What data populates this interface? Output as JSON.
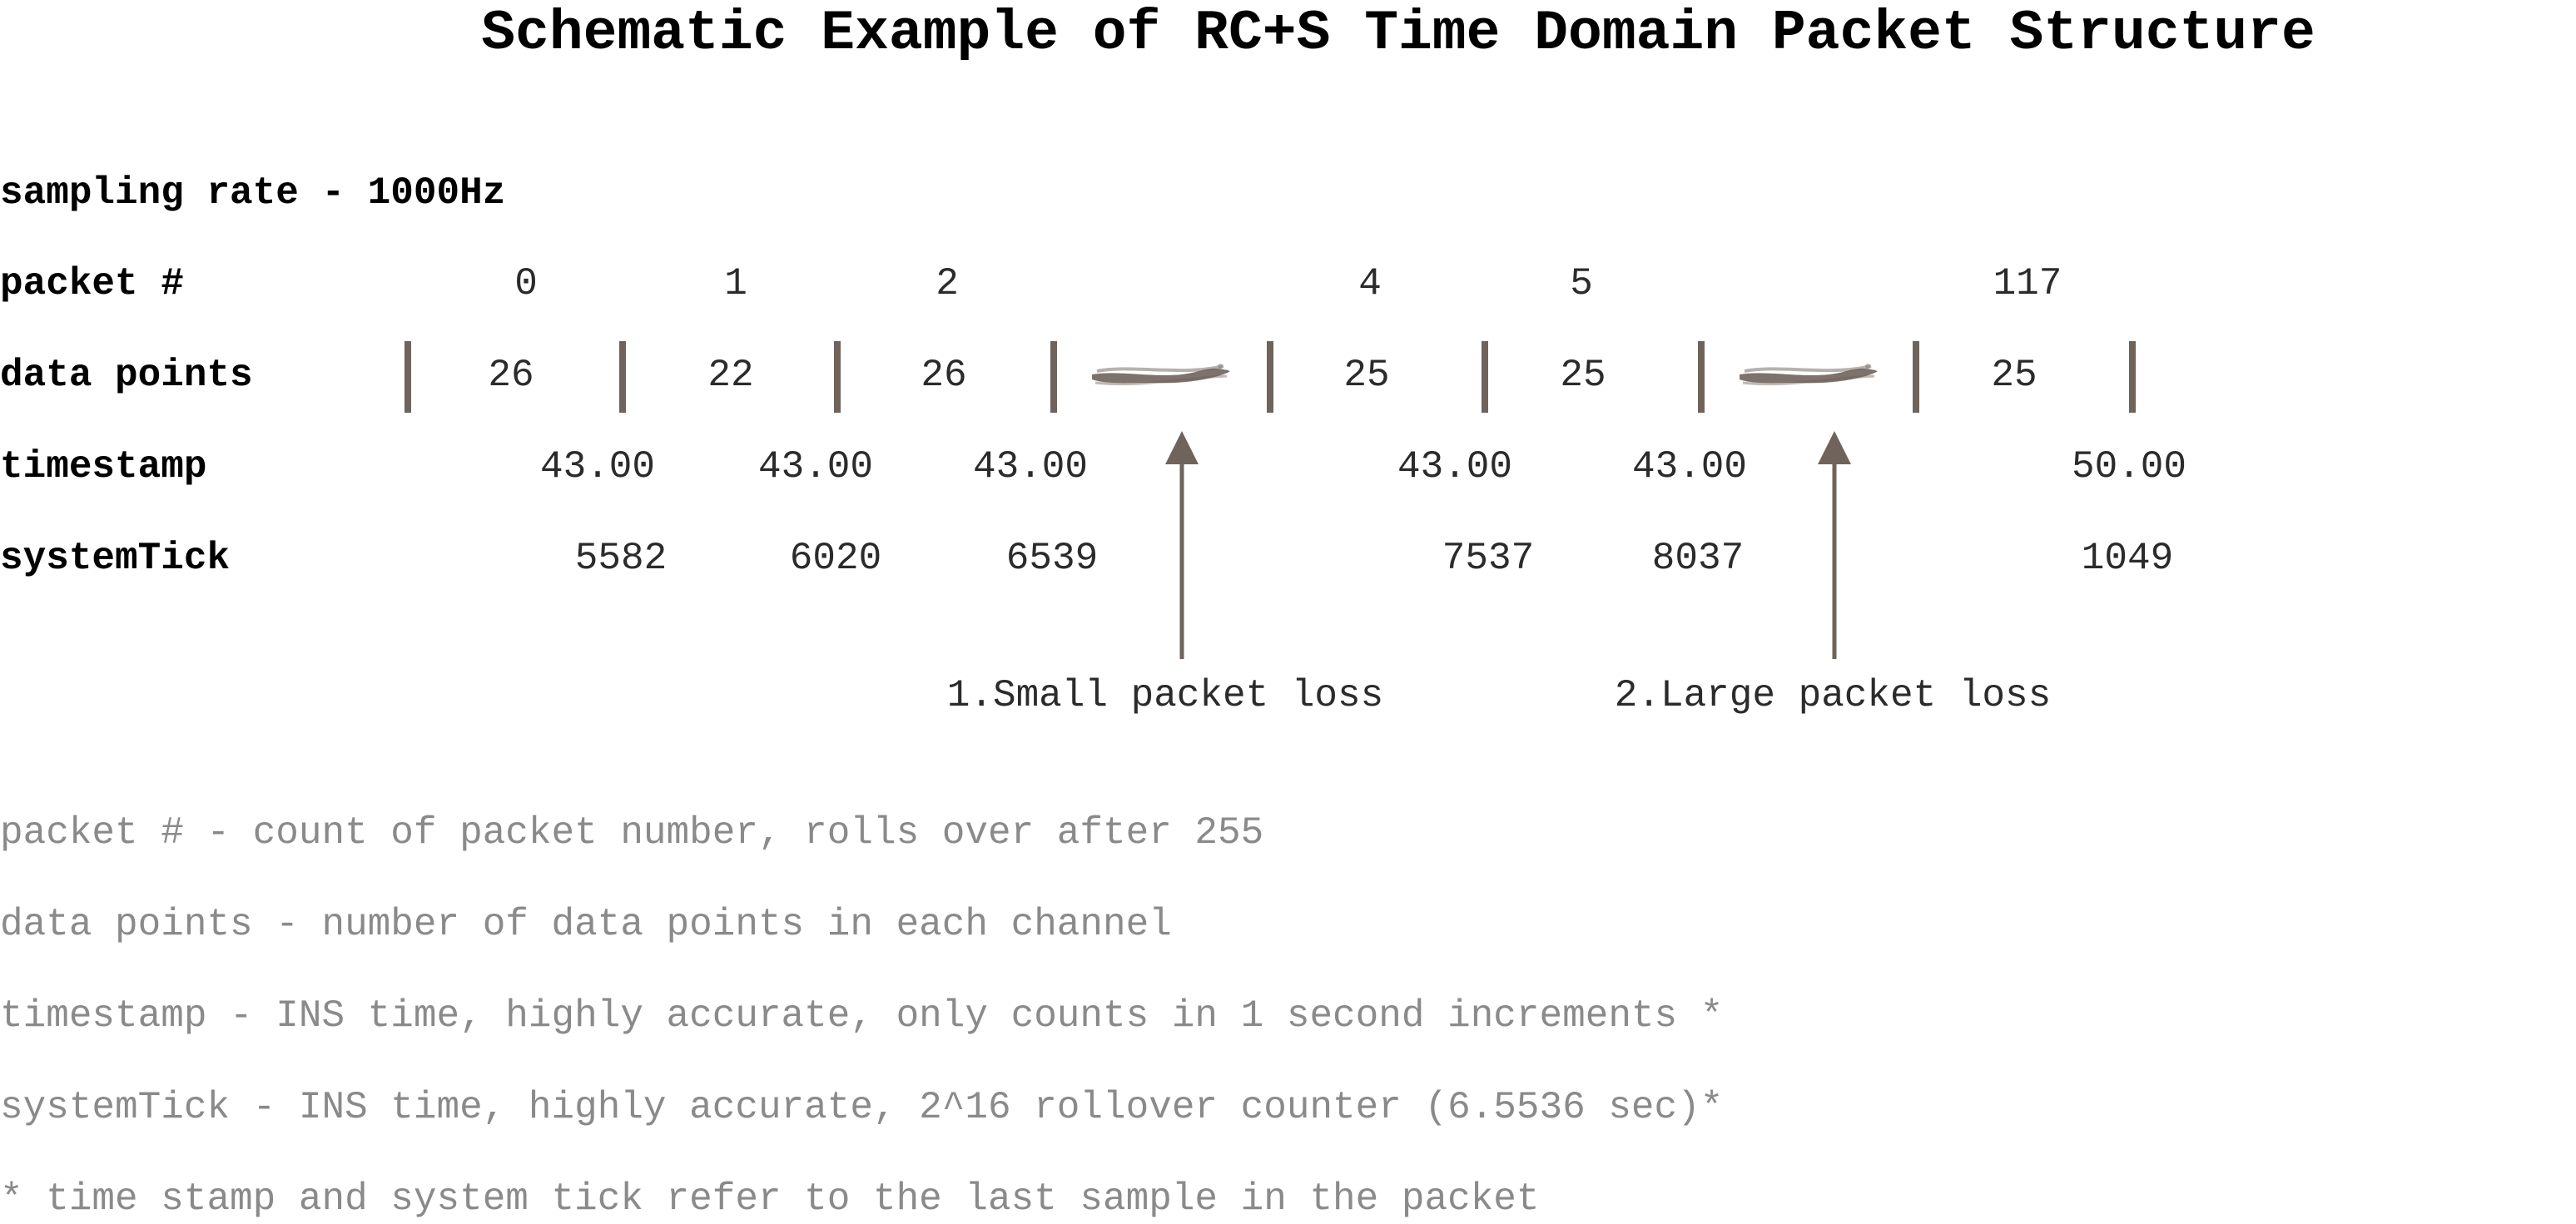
{
  "title": "Schematic Example of RC+S Time Domain Packet Structure",
  "sampling_rate_label": "sampling rate - 1000Hz",
  "row_labels": {
    "packet": "packet #",
    "data_points": "data points",
    "timestamp": "timestamp",
    "system_tick": "systemTick"
  },
  "packets": [
    {
      "number": "0",
      "data_points": "26",
      "timestamp": "43.00",
      "system_tick": "5582"
    },
    {
      "number": "1",
      "data_points": "22",
      "timestamp": "43.00",
      "system_tick": "6020"
    },
    {
      "number": "2",
      "data_points": "26",
      "timestamp": "43.00",
      "system_tick": "6539"
    },
    {
      "number": "4",
      "data_points": "25",
      "timestamp": "43.00",
      "system_tick": "7537"
    },
    {
      "number": "5",
      "data_points": "25",
      "timestamp": "43.00",
      "system_tick": "8037"
    },
    {
      "number": "117",
      "data_points": "25",
      "timestamp": "50.00",
      "system_tick": "1049"
    }
  ],
  "annotations": [
    {
      "label": "1.Small packet loss"
    },
    {
      "label": "2.Large packet loss"
    }
  ],
  "legend": [
    "packet # - count of packet number, rolls over after 255",
    "data points - number of data points in each channel",
    "timestamp - INS time, highly accurate, only counts in 1 second increments *",
    "systemTick - INS time, highly accurate, 2^16 rollover counter (6.5536 sec)*",
    "* time stamp and system tick refer to the last sample in the packet"
  ],
  "colors": {
    "separator": "#6f635c",
    "gap_smudge": "#6f635c",
    "arrow": "#6f635c",
    "legend_text": "#8a8a8a"
  }
}
